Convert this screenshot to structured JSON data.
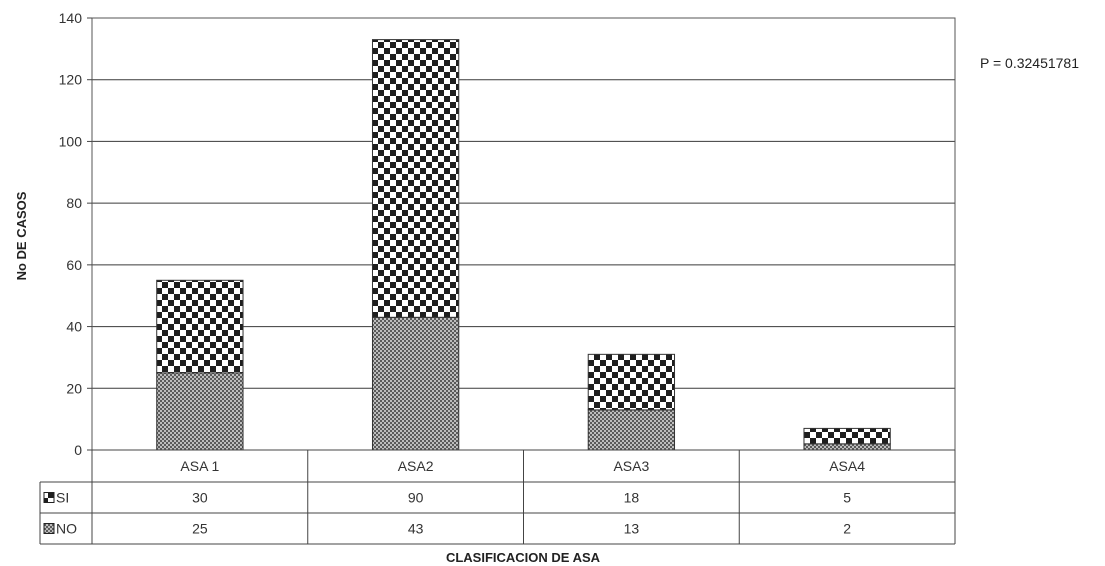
{
  "chart_data": {
    "type": "bar",
    "stacked": true,
    "categories": [
      "ASA 1",
      "ASA2",
      "ASA3",
      "ASA4"
    ],
    "series": [
      {
        "name": "SI",
        "values": [
          30,
          90,
          18,
          5
        ],
        "pattern": "checkerboard"
      },
      {
        "name": "NO",
        "values": [
          25,
          43,
          13,
          2
        ],
        "pattern": "fine-dots"
      }
    ],
    "ylabel": "No DE CASOS",
    "xlabel": "CLASIFICACION DE ASA",
    "ylim": [
      0,
      140
    ],
    "yticks": [
      0,
      20,
      40,
      60,
      80,
      100,
      120,
      140
    ],
    "grid": true,
    "data_table": true,
    "annotation": "P = 0.32451781",
    "colors": {
      "check_dark": "#1e1e1e",
      "check_light": "#ffffff",
      "dot_dark": "#5a5a5a",
      "dot_light": "#bdbdbd",
      "grid": "#3a3a3a"
    }
  }
}
